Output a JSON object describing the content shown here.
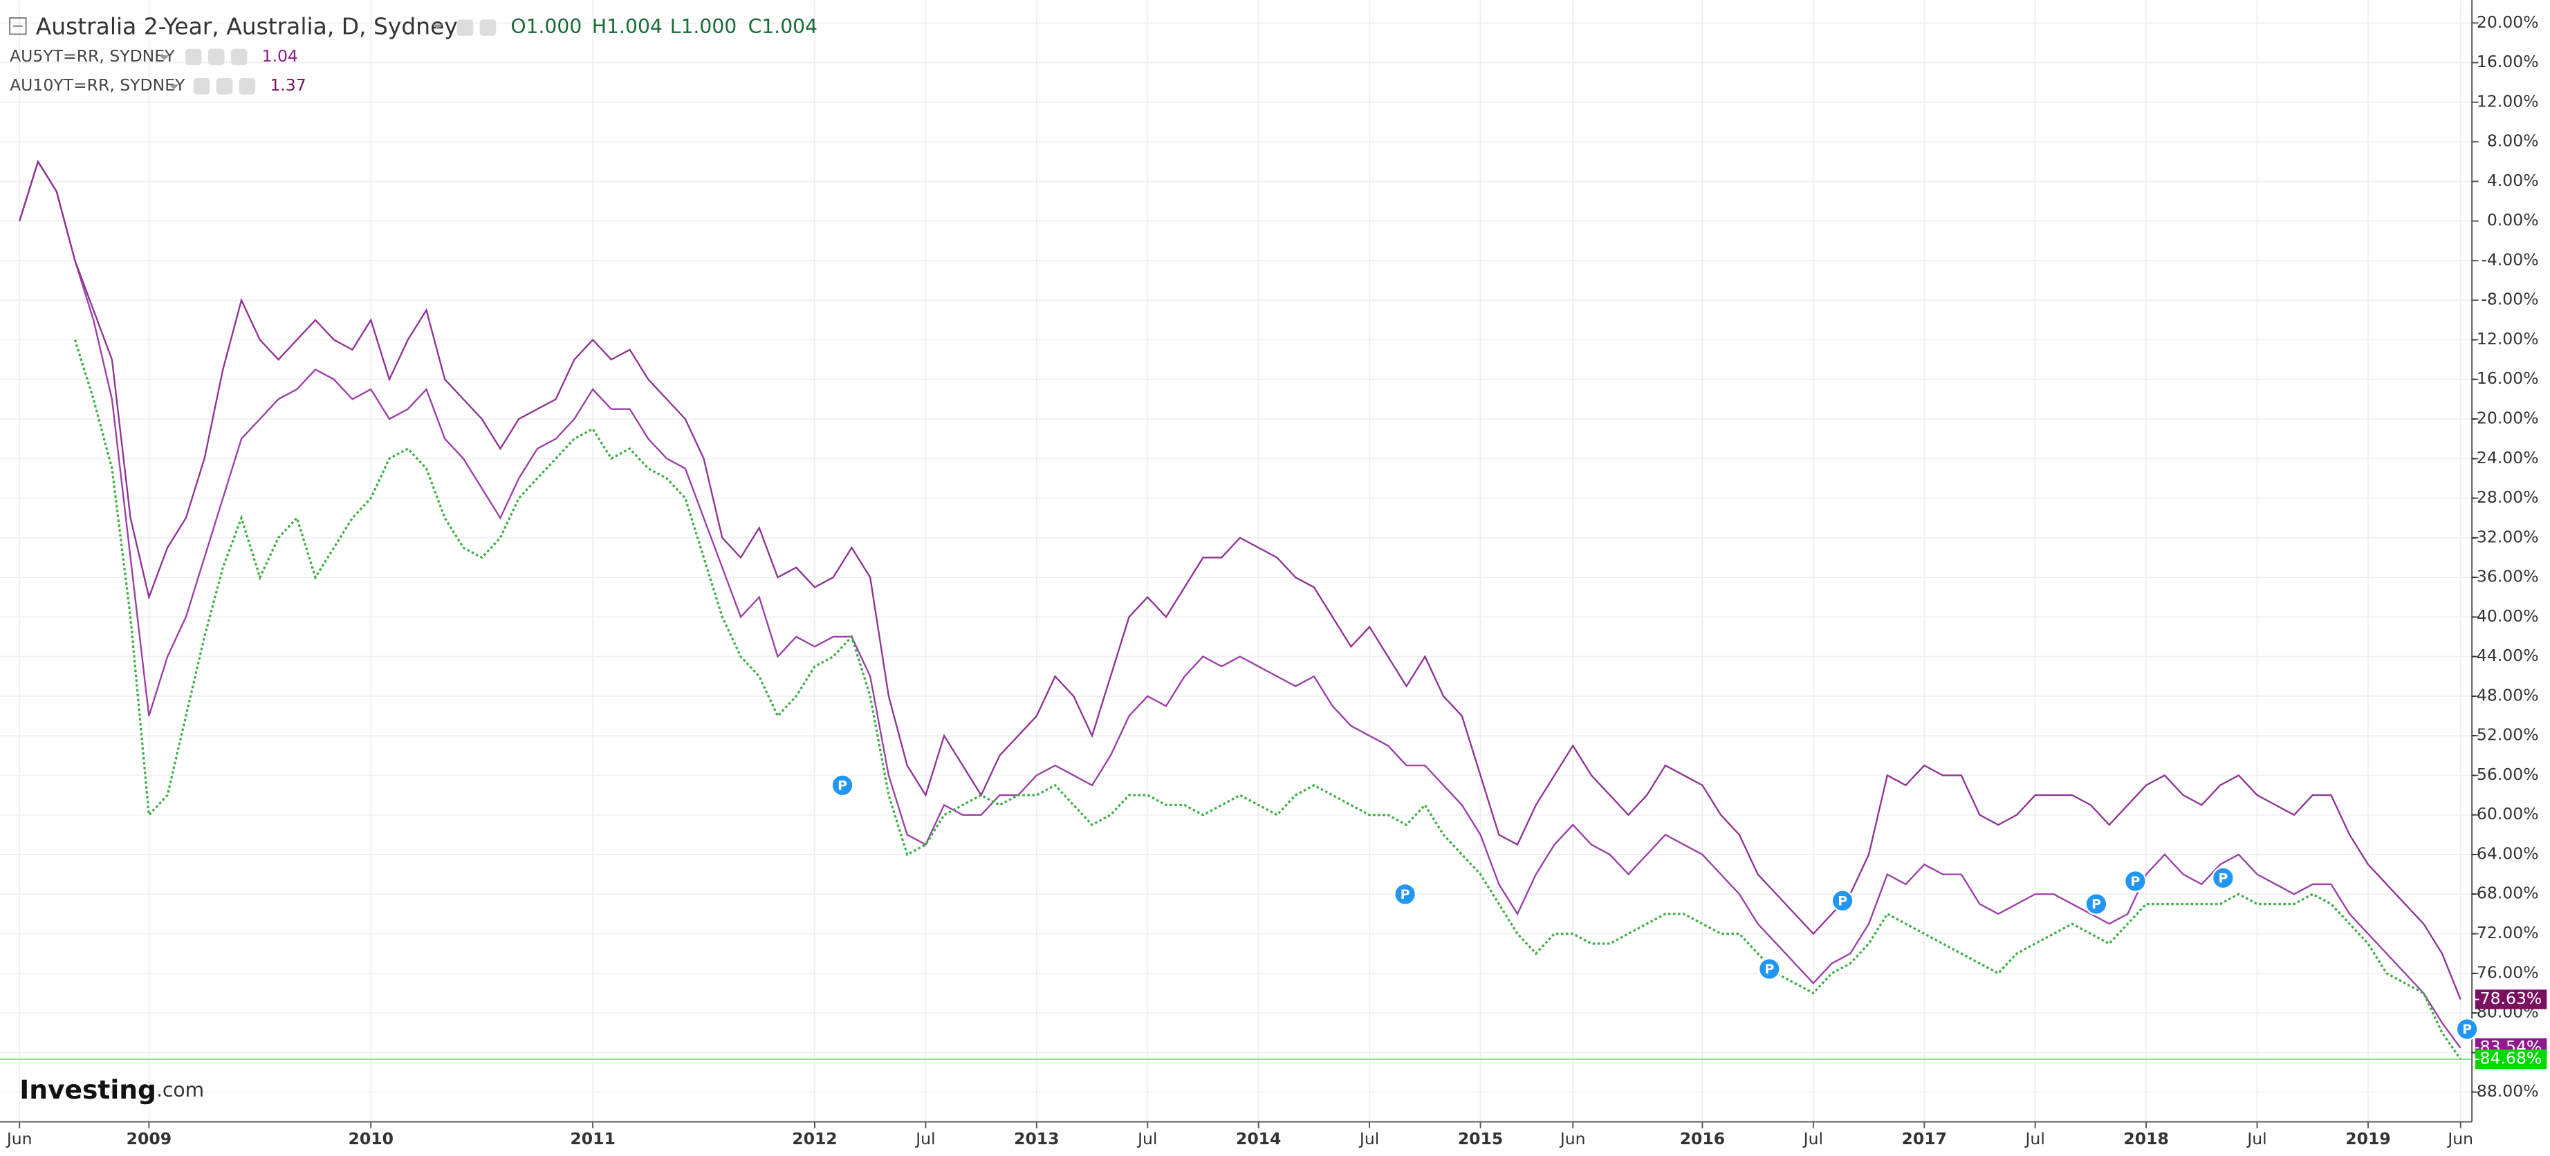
{
  "header": {
    "ohlc": [
      "O1.000",
      "H1.004",
      "L1.000",
      "C1.004"
    ],
    "logo": "Investing",
    "logo_suffix": ".com",
    "event_marker": "P"
  },
  "chart_data": {
    "type": "line",
    "categories": [
      "Jun",
      null,
      null,
      null,
      null,
      null,
      null,
      "2009",
      null,
      null,
      null,
      null,
      null,
      null,
      null,
      null,
      null,
      null,
      null,
      "2010",
      null,
      null,
      null,
      null,
      null,
      null,
      null,
      null,
      null,
      null,
      null,
      "2011",
      null,
      null,
      null,
      null,
      null,
      null,
      null,
      null,
      null,
      null,
      null,
      "2012",
      null,
      null,
      null,
      null,
      null,
      "Jul",
      null,
      null,
      null,
      null,
      null,
      "2013",
      null,
      null,
      null,
      null,
      null,
      "Jul",
      null,
      null,
      null,
      null,
      null,
      "2014",
      null,
      null,
      null,
      null,
      null,
      "Jul",
      null,
      null,
      null,
      null,
      null,
      "2015",
      null,
      null,
      null,
      null,
      "Jun",
      null,
      null,
      null,
      null,
      null,
      null,
      "2016",
      null,
      null,
      null,
      null,
      null,
      "Jul",
      null,
      null,
      null,
      null,
      null,
      "2017",
      null,
      null,
      null,
      null,
      null,
      "Jul",
      null,
      null,
      null,
      null,
      null,
      "2018",
      null,
      null,
      null,
      null,
      null,
      "Jul",
      null,
      null,
      null,
      null,
      null,
      "2019",
      null,
      null,
      null,
      null,
      "Jun"
    ],
    "series": [
      {
        "name": "AU5YT=RR, SYDNEY",
        "legend_value": 1.04,
        "color": "#9a3fa6",
        "end_color": "#8e1a8e",
        "end_label": "-83.54%",
        "values": [
          0,
          6,
          3,
          -4,
          -10,
          -18,
          -34,
          -50,
          -44,
          -40,
          -34,
          -28,
          -22,
          -20,
          -18,
          -17,
          -15,
          -16,
          -18,
          -17,
          -20,
          -19,
          -17,
          -22,
          -24,
          -27,
          -30,
          -26,
          -23,
          -22,
          -20,
          -17,
          -19,
          -19,
          -22,
          -24,
          -25,
          -30,
          -35,
          -40,
          -38,
          -44,
          -42,
          -43,
          -42,
          -42,
          -46,
          -56,
          -62,
          -63,
          -59,
          -60,
          -60,
          -58,
          -58,
          -56,
          -55,
          -56,
          -57,
          -54,
          -50,
          -48,
          -49,
          -46,
          -44,
          -45,
          -44,
          -45,
          -46,
          -47,
          -46,
          -49,
          -51,
          -52,
          -53,
          -55,
          -55,
          -57,
          -59,
          -62,
          -67,
          -70,
          -66,
          -63,
          -61,
          -63,
          -64,
          -66,
          -64,
          -62,
          -63,
          -64,
          -66,
          -68,
          -71,
          -73,
          -75,
          -77,
          -75,
          -74,
          -71,
          -66,
          -67,
          -65,
          -66,
          -66,
          -69,
          -70,
          -69,
          -68,
          -68,
          -69,
          -70,
          -71,
          -70,
          -66,
          -64,
          -66,
          -67,
          -65,
          -64,
          -66,
          -67,
          -68,
          -67,
          -67,
          -70,
          -72,
          -74,
          -76,
          -78,
          -81,
          -83.54
        ]
      },
      {
        "name": "AU10YT=RR, SYDNEY",
        "legend_value": 1.37,
        "color": "#8f3493",
        "end_color": "#7b1060",
        "end_label": "-78.63%",
        "values": [
          0,
          6,
          3,
          -4,
          -9,
          -14,
          -30,
          -38,
          -33,
          -30,
          -24,
          -15,
          -8,
          -12,
          -14,
          -12,
          -10,
          -12,
          -13,
          -10,
          -16,
          -12,
          -9,
          -16,
          -18,
          -20,
          -23,
          -20,
          -19,
          -18,
          -14,
          -12,
          -14,
          -13,
          -16,
          -18,
          -20,
          -24,
          -32,
          -34,
          -31,
          -36,
          -35,
          -37,
          -36,
          -33,
          -36,
          -48,
          -55,
          -58,
          -52,
          -55,
          -58,
          -54,
          -52,
          -50,
          -46,
          -48,
          -52,
          -46,
          -40,
          -38,
          -40,
          -37,
          -34,
          -34,
          -32,
          -33,
          -34,
          -36,
          -37,
          -40,
          -43,
          -41,
          -44,
          -47,
          -44,
          -48,
          -50,
          -56,
          -62,
          -63,
          -59,
          -56,
          -53,
          -56,
          -58,
          -60,
          -58,
          -55,
          -56,
          -57,
          -60,
          -62,
          -66,
          -68,
          -70,
          -72,
          -70,
          -68,
          -64,
          -56,
          -57,
          -55,
          -56,
          -56,
          -60,
          -61,
          -60,
          -58,
          -58,
          -58,
          -59,
          -61,
          -59,
          -57,
          -56,
          -58,
          -59,
          -57,
          -56,
          -58,
          -59,
          -60,
          -58,
          -58,
          -62,
          -65,
          -67,
          -69,
          -71,
          -74,
          -78.63
        ]
      },
      {
        "name": "Australia 2-Year, Australia, D, Sydney",
        "color": "#3cb043",
        "end_color": "#00d800",
        "end_label": "-84.68%",
        "values": [
          null,
          null,
          null,
          -12,
          -18,
          -25,
          -40,
          -60,
          -58,
          -50,
          -42,
          -35,
          -30,
          -36,
          -32,
          -30,
          -36,
          -33,
          -30,
          -28,
          -24,
          -23,
          -25,
          -30,
          -33,
          -34,
          -32,
          -28,
          -26,
          -24,
          -22,
          -21,
          -24,
          -23,
          -25,
          -26,
          -28,
          -34,
          -40,
          -44,
          -46,
          -50,
          -48,
          -45,
          -44,
          -42,
          -48,
          -58,
          -64,
          -63,
          -60,
          -59,
          -58,
          -59,
          -58,
          -58,
          -57,
          -59,
          -61,
          -60,
          -58,
          -58,
          -59,
          -59,
          -60,
          -59,
          -58,
          -59,
          -60,
          -58,
          -57,
          -58,
          -59,
          -60,
          -60,
          -61,
          -59,
          -62,
          -64,
          -66,
          -69,
          -72,
          -74,
          -72,
          -72,
          -73,
          -73,
          -72,
          -71,
          -70,
          -70,
          -71,
          -72,
          -72,
          -74,
          -76,
          -77,
          -78,
          -76,
          -75,
          -73,
          -70,
          -71,
          -72,
          -73,
          -74,
          -75,
          -76,
          -74,
          -73,
          -72,
          -71,
          -72,
          -73,
          -71,
          -69,
          -69,
          -69,
          -69,
          -69,
          -68,
          -69,
          -69,
          -69,
          -68,
          -69,
          -71,
          -73,
          -76,
          -77,
          -78,
          -82,
          -84.68
        ]
      }
    ],
    "ylim": [
      21.5,
      -91
    ],
    "yticks": [
      {
        "value": 20,
        "label": "20.00%"
      },
      {
        "value": 16,
        "label": "16.00%"
      },
      {
        "value": 12,
        "label": "12.00%"
      },
      {
        "value": 8,
        "label": "8.00%"
      },
      {
        "value": 4,
        "label": "4.00%"
      },
      {
        "value": 0,
        "label": "0.00%"
      },
      {
        "value": -4,
        "label": "-4.00%"
      },
      {
        "value": -8,
        "label": "-8.00%"
      },
      {
        "value": -12,
        "label": "-12.00%"
      },
      {
        "value": -16,
        "label": "-16.00%"
      },
      {
        "value": -20,
        "label": "-20.00%"
      },
      {
        "value": -24,
        "label": "-24.00%"
      },
      {
        "value": -28,
        "label": "-28.00%"
      },
      {
        "value": -32,
        "label": "-32.00%"
      },
      {
        "value": -36,
        "label": "-36.00%"
      },
      {
        "value": -40,
        "label": "-40.00%"
      },
      {
        "value": -44,
        "label": "-44.00%"
      },
      {
        "value": -48,
        "label": "-48.00%"
      },
      {
        "value": -52,
        "label": "-52.00%"
      },
      {
        "value": -56,
        "label": "-56.00%"
      },
      {
        "value": -60,
        "label": "-60.00%"
      },
      {
        "value": -64,
        "label": "-64.00%"
      },
      {
        "value": -68,
        "label": "-68.00%"
      },
      {
        "value": -72,
        "label": "-72.00%"
      },
      {
        "value": -76,
        "label": "-76.00%"
      },
      {
        "value": -80,
        "label": "-80.00%"
      },
      {
        "value": -84,
        "label": "-84.00%"
      },
      {
        "value": -88,
        "label": "-88.00%"
      }
    ],
    "grid": true
  }
}
